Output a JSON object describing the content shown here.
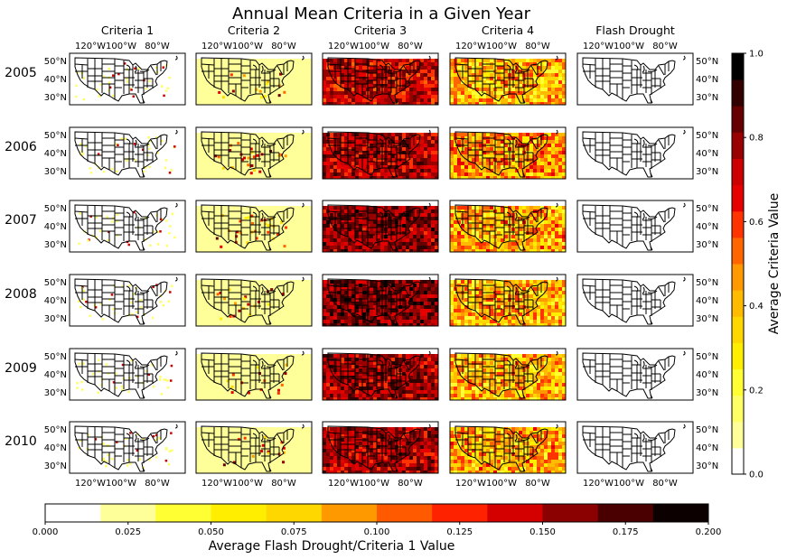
{
  "figure": {
    "title": "Annual Mean Criteria in a Given Year",
    "columns": [
      "Criteria 1",
      "Criteria 2",
      "Criteria 3",
      "Criteria 4",
      "Flash Drought"
    ],
    "rows": [
      "2005",
      "2006",
      "2007",
      "2008",
      "2009",
      "2010"
    ],
    "lon_ticks": [
      "120°W",
      "100°W",
      "80°W"
    ],
    "lat_ticks": [
      "50°N",
      "40°N",
      "30°N"
    ]
  },
  "chart_data": [
    {
      "type": "heatmap",
      "title": "Annual Mean Criteria in a Given Year",
      "rows": [
        "2005",
        "2006",
        "2007",
        "2008",
        "2009",
        "2010"
      ],
      "columns": [
        "Criteria 1",
        "Criteria 2",
        "Criteria 3",
        "Criteria 4",
        "Flash Drought"
      ],
      "lon_range": [
        "125°W",
        "66°W"
      ],
      "lat_range": [
        "24°N",
        "50°N"
      ],
      "mean_level": [
        [
          0.02,
          0.03,
          0.72,
          0.4,
          0.0
        ],
        [
          0.02,
          0.05,
          0.75,
          0.45,
          0.0
        ],
        [
          0.02,
          0.06,
          0.8,
          0.42,
          0.0
        ],
        [
          0.02,
          0.04,
          0.82,
          0.4,
          0.0
        ],
        [
          0.02,
          0.03,
          0.78,
          0.4,
          0.0
        ],
        [
          0.02,
          0.03,
          0.76,
          0.42,
          0.0
        ]
      ]
    },
    {
      "type": "colorbar",
      "orientation": "vertical",
      "label": "Average Criteria Value",
      "range": [
        0.0,
        1.0
      ],
      "ticks": [
        "0.0",
        "0.2",
        "0.4",
        "0.6",
        "0.8",
        "1.0"
      ],
      "tick_values": [
        0.0,
        0.2,
        0.4,
        0.6,
        0.8,
        1.0
      ],
      "colors": [
        "#ffffff",
        "#ffff99",
        "#ffff66",
        "#ffff33",
        "#ffee00",
        "#ffd700",
        "#ffbb00",
        "#ff9900",
        "#ff6600",
        "#ff3300",
        "#e60000",
        "#cc0000",
        "#990000",
        "#660000",
        "#330000",
        "#000000"
      ]
    },
    {
      "type": "colorbar",
      "orientation": "horizontal",
      "label": "Average Flash Drought/Criteria 1 Value",
      "range": [
        0.0,
        0.2
      ],
      "ticks": [
        "0.000",
        "0.025",
        "0.050",
        "0.075",
        "0.100",
        "0.125",
        "0.150",
        "0.175",
        "0.200"
      ],
      "tick_values": [
        0.0,
        0.025,
        0.05,
        0.075,
        0.1,
        0.125,
        0.15,
        0.175,
        0.2
      ],
      "colors": [
        "#ffffff",
        "#ffff99",
        "#ffff33",
        "#ffee00",
        "#ffd700",
        "#ff9900",
        "#ff5a00",
        "#ff2200",
        "#d40000",
        "#8b0000",
        "#4a0000",
        "#0d0000"
      ]
    }
  ],
  "colors": {
    "pale": "#ffff99",
    "yellow": "#ffee00",
    "orange": "#ff9900",
    "red": "#ff2200",
    "dark_red": "#b00000",
    "black": "#000000"
  }
}
